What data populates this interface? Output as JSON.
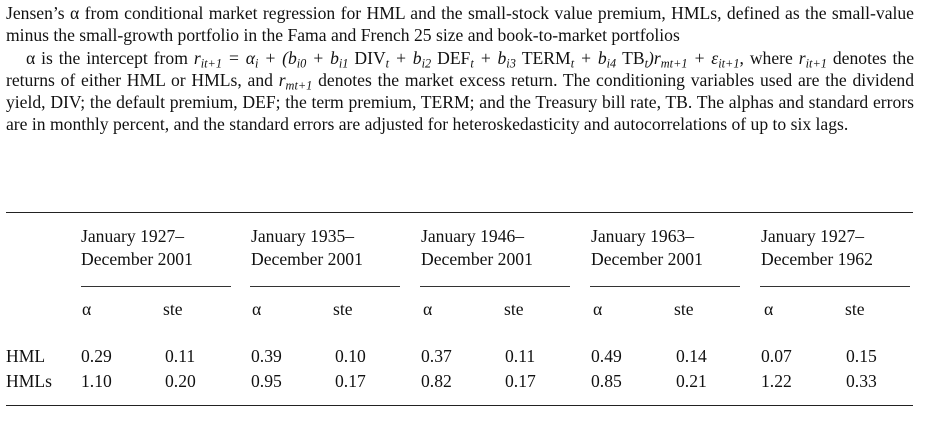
{
  "caption": {
    "para1": "Jensen’s α from conditional market regression for HML and the small-stock value premium, HMLs, defined as the small-value minus the small-growth portfolio in the Fama and French 25 size and book-to-market portfolios",
    "para2_lead": "α is the intercept from",
    "equation": {
      "lhs": "r",
      "lhs_sub": "it+1",
      "alpha": "α",
      "alpha_sub": "i",
      "b0": "b",
      "b0_sub": "i0",
      "b1": "b",
      "b1_sub": "i1",
      "div": "DIV",
      "t": "t",
      "b2": "b",
      "b2_sub": "i2",
      "def": "DEF",
      "b3": "b",
      "b3_sub": "i3",
      "term": "TERM",
      "b4": "b",
      "b4_sub": "i4",
      "tb": "TB",
      "rm": "r",
      "rm_sub": "mt+1",
      "eps": "ε",
      "eps_sub": "it+1"
    },
    "para2_mid1": "where",
    "para2_mid2": "denotes the returns of either HML or HMLs, and",
    "para2_rest": "denotes the market excess return. The conditioning variables used are the dividend yield, DIV; the default premium, DEF; the term premium, TERM; and the Treasury bill rate, TB. The alphas and standard errors are in monthly percent, and the standard errors are adjusted for heteroskedasticity and autocorrelations of up to six lags."
  },
  "table": {
    "periods": [
      {
        "line1": "January 1927–",
        "line2": "December 2001"
      },
      {
        "line1": "January 1935–",
        "line2": "December 2001"
      },
      {
        "line1": "January 1946–",
        "line2": "December 2001"
      },
      {
        "line1": "January 1963–",
        "line2": "December 2001"
      },
      {
        "line1": "January 1927–",
        "line2": "December 1962"
      }
    ],
    "col_alpha": "α",
    "col_ste": "ste",
    "rows": [
      {
        "label": "HML",
        "values": [
          "0.29",
          "0.11",
          "0.39",
          "0.10",
          "0.37",
          "0.11",
          "0.49",
          "0.14",
          "0.07",
          "0.15"
        ]
      },
      {
        "label": "HMLs",
        "values": [
          "1.10",
          "0.20",
          "0.95",
          "0.17",
          "0.82",
          "0.17",
          "0.85",
          "0.21",
          "1.22",
          "0.33"
        ]
      }
    ]
  }
}
